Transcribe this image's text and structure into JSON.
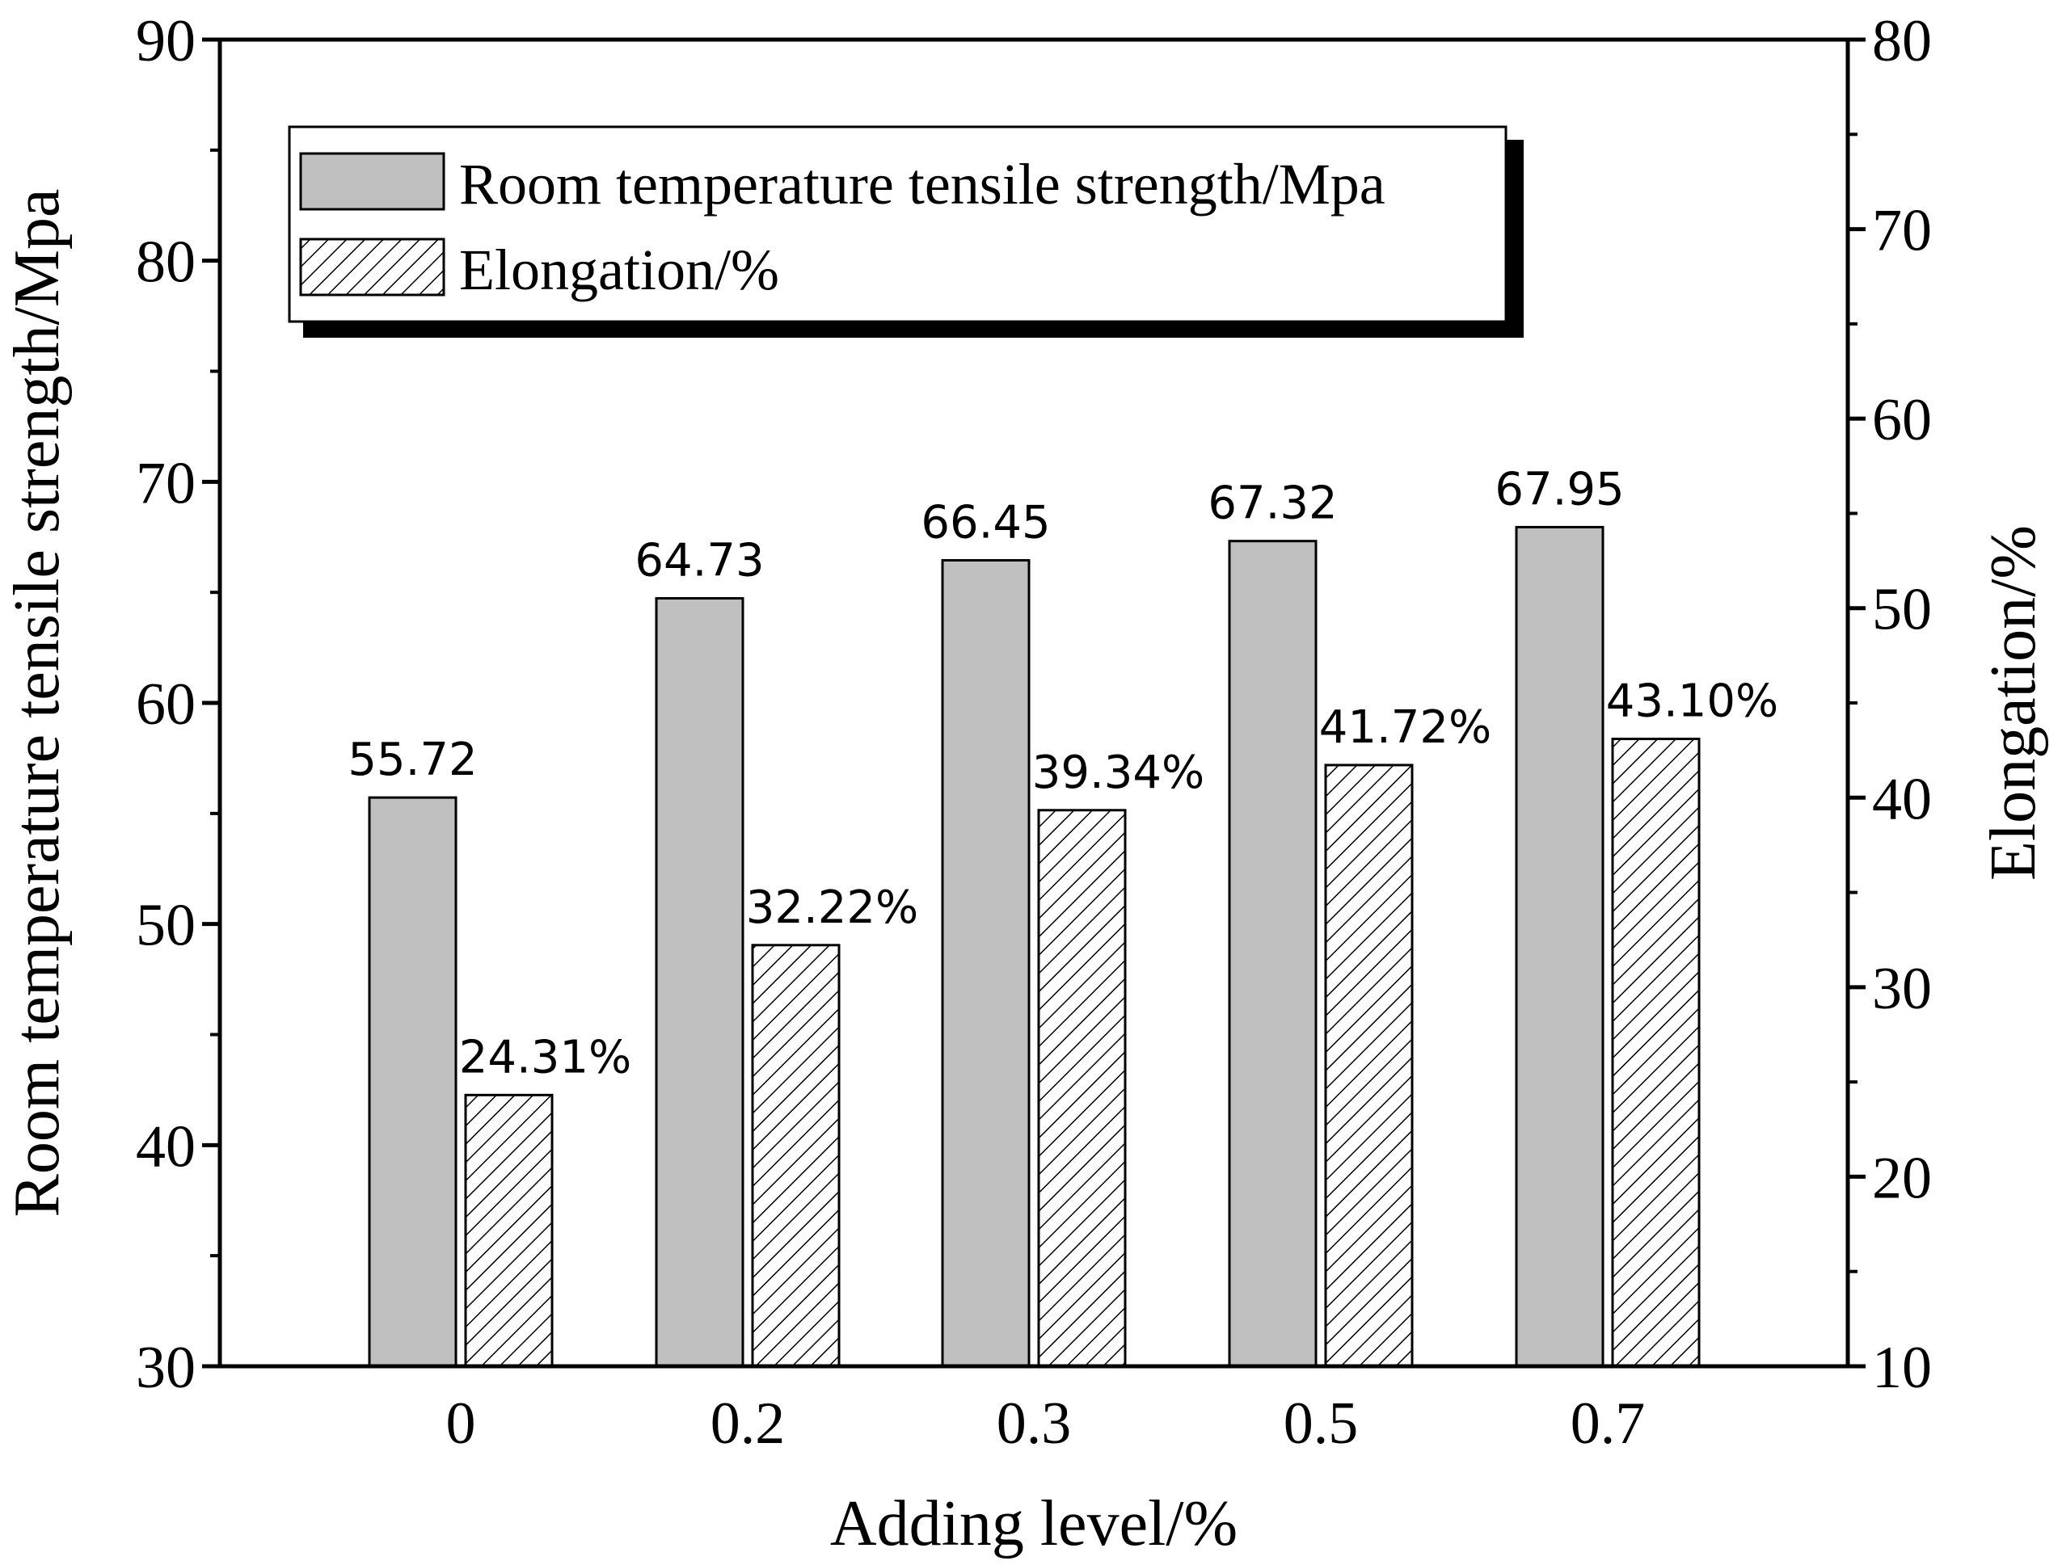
{
  "chart_data": {
    "type": "bar",
    "categories": [
      "0",
      "0.2",
      "0.3",
      "0.5",
      "0.7"
    ],
    "xlabel": "Adding level/%",
    "ylabel": "Room temperature tensile strength/Mpa",
    "y2label": "Elongation/%",
    "ylim": [
      30,
      90
    ],
    "y2lim": [
      10,
      80
    ],
    "yticks": [
      30,
      40,
      50,
      60,
      70,
      80,
      90
    ],
    "y2ticks": [
      10,
      20,
      30,
      40,
      50,
      60,
      70,
      80
    ],
    "grid": false,
    "legend_position": "top-left",
    "series": [
      {
        "name": "Room temperature tensile strength/Mpa",
        "axis": "left",
        "fill": "solid",
        "color": "#c0c0c0",
        "values": [
          55.72,
          64.73,
          66.45,
          67.32,
          67.95
        ],
        "labels": [
          "55.72",
          "64.73",
          "66.45",
          "67.32",
          "67.95"
        ]
      },
      {
        "name": "Elongation/%",
        "axis": "right",
        "fill": "hatched",
        "color": "#ffffff",
        "values": [
          24.31,
          32.22,
          39.34,
          41.72,
          43.1
        ],
        "labels": [
          "24.31%",
          "32.22%",
          "39.34%",
          "41.72%",
          "43.10%"
        ]
      }
    ]
  }
}
